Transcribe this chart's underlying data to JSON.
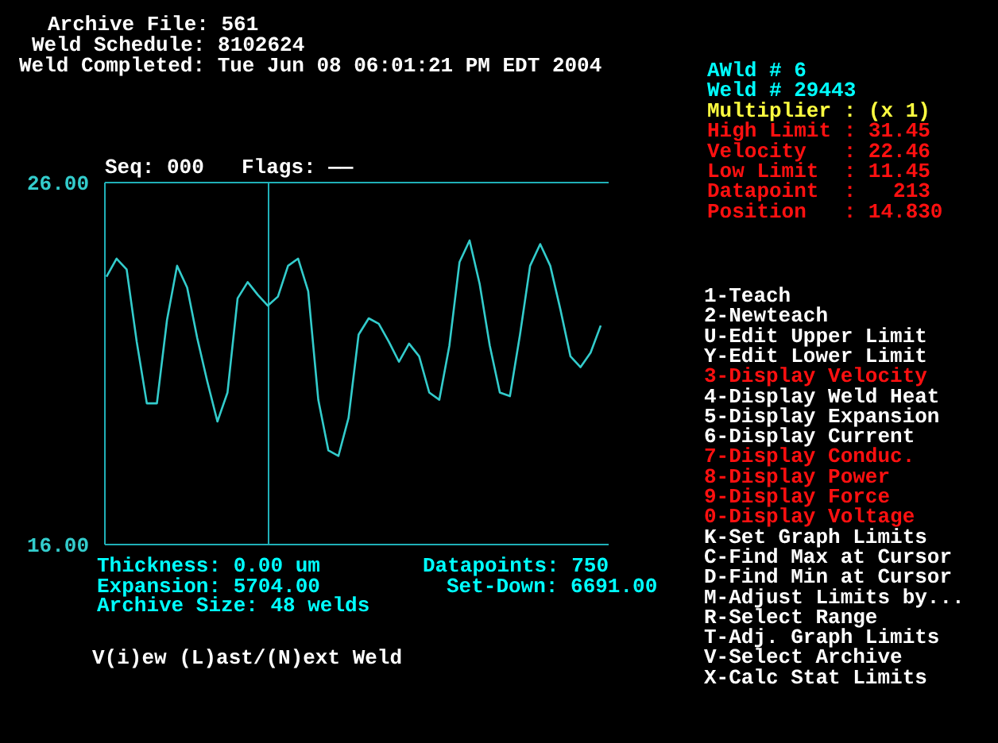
{
  "chart_data": {
    "type": "line",
    "color": "#33cccc",
    "ylim": [
      16,
      26
    ],
    "yticks": [
      {
        "value": 26,
        "label": "26.00"
      },
      {
        "value": 16,
        "label": "16.00"
      }
    ],
    "tick_labels": "y",
    "categories": [
      null,
      null,
      null,
      null,
      null,
      null,
      null,
      null,
      null,
      null,
      null,
      null,
      null,
      null,
      null,
      null,
      null,
      null,
      null,
      null,
      null,
      null,
      null,
      null,
      null,
      null,
      null,
      null,
      null,
      null,
      null,
      null,
      null,
      null,
      null,
      null,
      null,
      null,
      null,
      null,
      null,
      null,
      null,
      null,
      null,
      null,
      null,
      null,
      null,
      null
    ],
    "values": [
      23.4,
      23.9,
      23.6,
      21.6,
      19.9,
      19.9,
      22.2,
      23.7,
      23.1,
      21.7,
      20.5,
      19.4,
      20.2,
      22.8,
      23.25,
      22.9,
      22.6,
      22.85,
      23.7,
      23.9,
      23.0,
      20.0,
      18.6,
      18.45,
      19.5,
      21.8,
      22.25,
      22.1,
      21.6,
      21.05,
      21.55,
      21.2,
      20.2,
      20.0,
      21.5,
      23.8,
      24.4,
      23.2,
      21.5,
      20.2,
      20.1,
      21.8,
      23.7,
      24.3,
      23.7,
      22.5,
      21.2,
      20.9,
      21.3,
      22.05
    ],
    "annotations": [
      "Archive File: 561",
      "Weld Schedule: 8102624",
      "Weld Completed: Tue Jun 08 06:01:21 PM EDT 2004",
      "Seq: 000",
      "Flags: ——",
      "AWld # 6",
      "Weld # 29443",
      "Multiplier : (x 1)",
      "High Limit : 31.45",
      "Velocity   : 22.46",
      "Low Limit  : 11.45",
      "Datapoint  :   213",
      "Position   : 14.830",
      "1-Teach",
      "2-Newteach",
      "U-Edit Upper Limit",
      "Y-Edit Lower Limit",
      "3-Display Velocity",
      "4-Display Weld Heat",
      "5-Display Expansion",
      "6-Display Current",
      "7-Display Conduc.",
      "8-Display Power",
      "9-Display Force",
      "0-Display Voltage",
      "K-Set Graph Limits",
      "C-Find Max at Cursor",
      "D-Find Min at Cursor",
      "M-Adjust Limits by...",
      "R-Select Range",
      "T-Adj. Graph Limits",
      "V-Select Archive",
      "X-Calc Stat Limits",
      "Thickness: 0.00 um",
      "Expansion: 5704.00",
      "Archive Size: 48 welds",
      "Datapoints: 750",
      "Set-Down: 6691.00",
      "V(i)ew (L)ast/(N)ext Weld"
    ]
  }
}
